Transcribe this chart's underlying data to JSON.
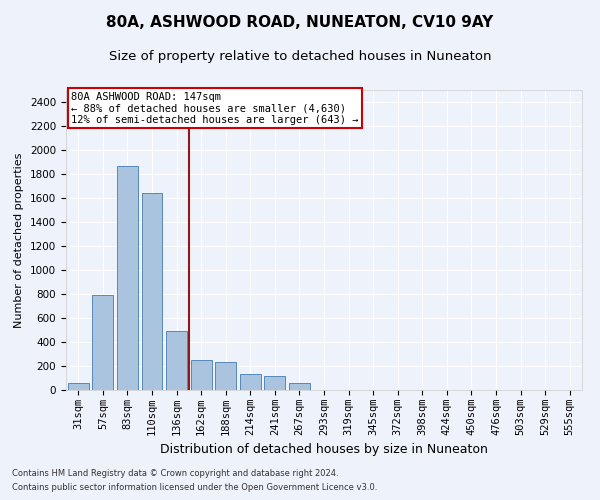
{
  "title1": "80A, ASHWOOD ROAD, NUNEATON, CV10 9AY",
  "title2": "Size of property relative to detached houses in Nuneaton",
  "xlabel": "Distribution of detached houses by size in Nuneaton",
  "ylabel": "Number of detached properties",
  "categories": [
    "31sqm",
    "57sqm",
    "83sqm",
    "110sqm",
    "136sqm",
    "162sqm",
    "188sqm",
    "214sqm",
    "241sqm",
    "267sqm",
    "293sqm",
    "319sqm",
    "345sqm",
    "372sqm",
    "398sqm",
    "424sqm",
    "450sqm",
    "476sqm",
    "503sqm",
    "529sqm",
    "555sqm"
  ],
  "values": [
    55,
    790,
    1870,
    1640,
    490,
    250,
    230,
    130,
    120,
    55,
    0,
    0,
    0,
    0,
    0,
    0,
    0,
    0,
    0,
    0,
    0
  ],
  "bar_color": "#aac4e0",
  "bar_edge_color": "#5588bb",
  "vline_x": 4.5,
  "vline_color": "#8b1a1a",
  "annotation_text": "80A ASHWOOD ROAD: 147sqm\n← 88% of detached houses are smaller (4,630)\n12% of semi-detached houses are larger (643) →",
  "annotation_box_color": "#ffffff",
  "annotation_box_edge": "#cc0000",
  "ylim": [
    0,
    2500
  ],
  "yticks": [
    0,
    200,
    400,
    600,
    800,
    1000,
    1200,
    1400,
    1600,
    1800,
    2000,
    2200,
    2400
  ],
  "footer1": "Contains HM Land Registry data © Crown copyright and database right 2024.",
  "footer2": "Contains public sector information licensed under the Open Government Licence v3.0.",
  "bg_color": "#eef2fb",
  "plot_bg_color": "#eef2fb",
  "title1_fontsize": 11,
  "title2_fontsize": 9.5,
  "xlabel_fontsize": 9,
  "ylabel_fontsize": 8,
  "tick_fontsize": 7.5,
  "footer_fontsize": 6,
  "annot_fontsize": 7.5
}
